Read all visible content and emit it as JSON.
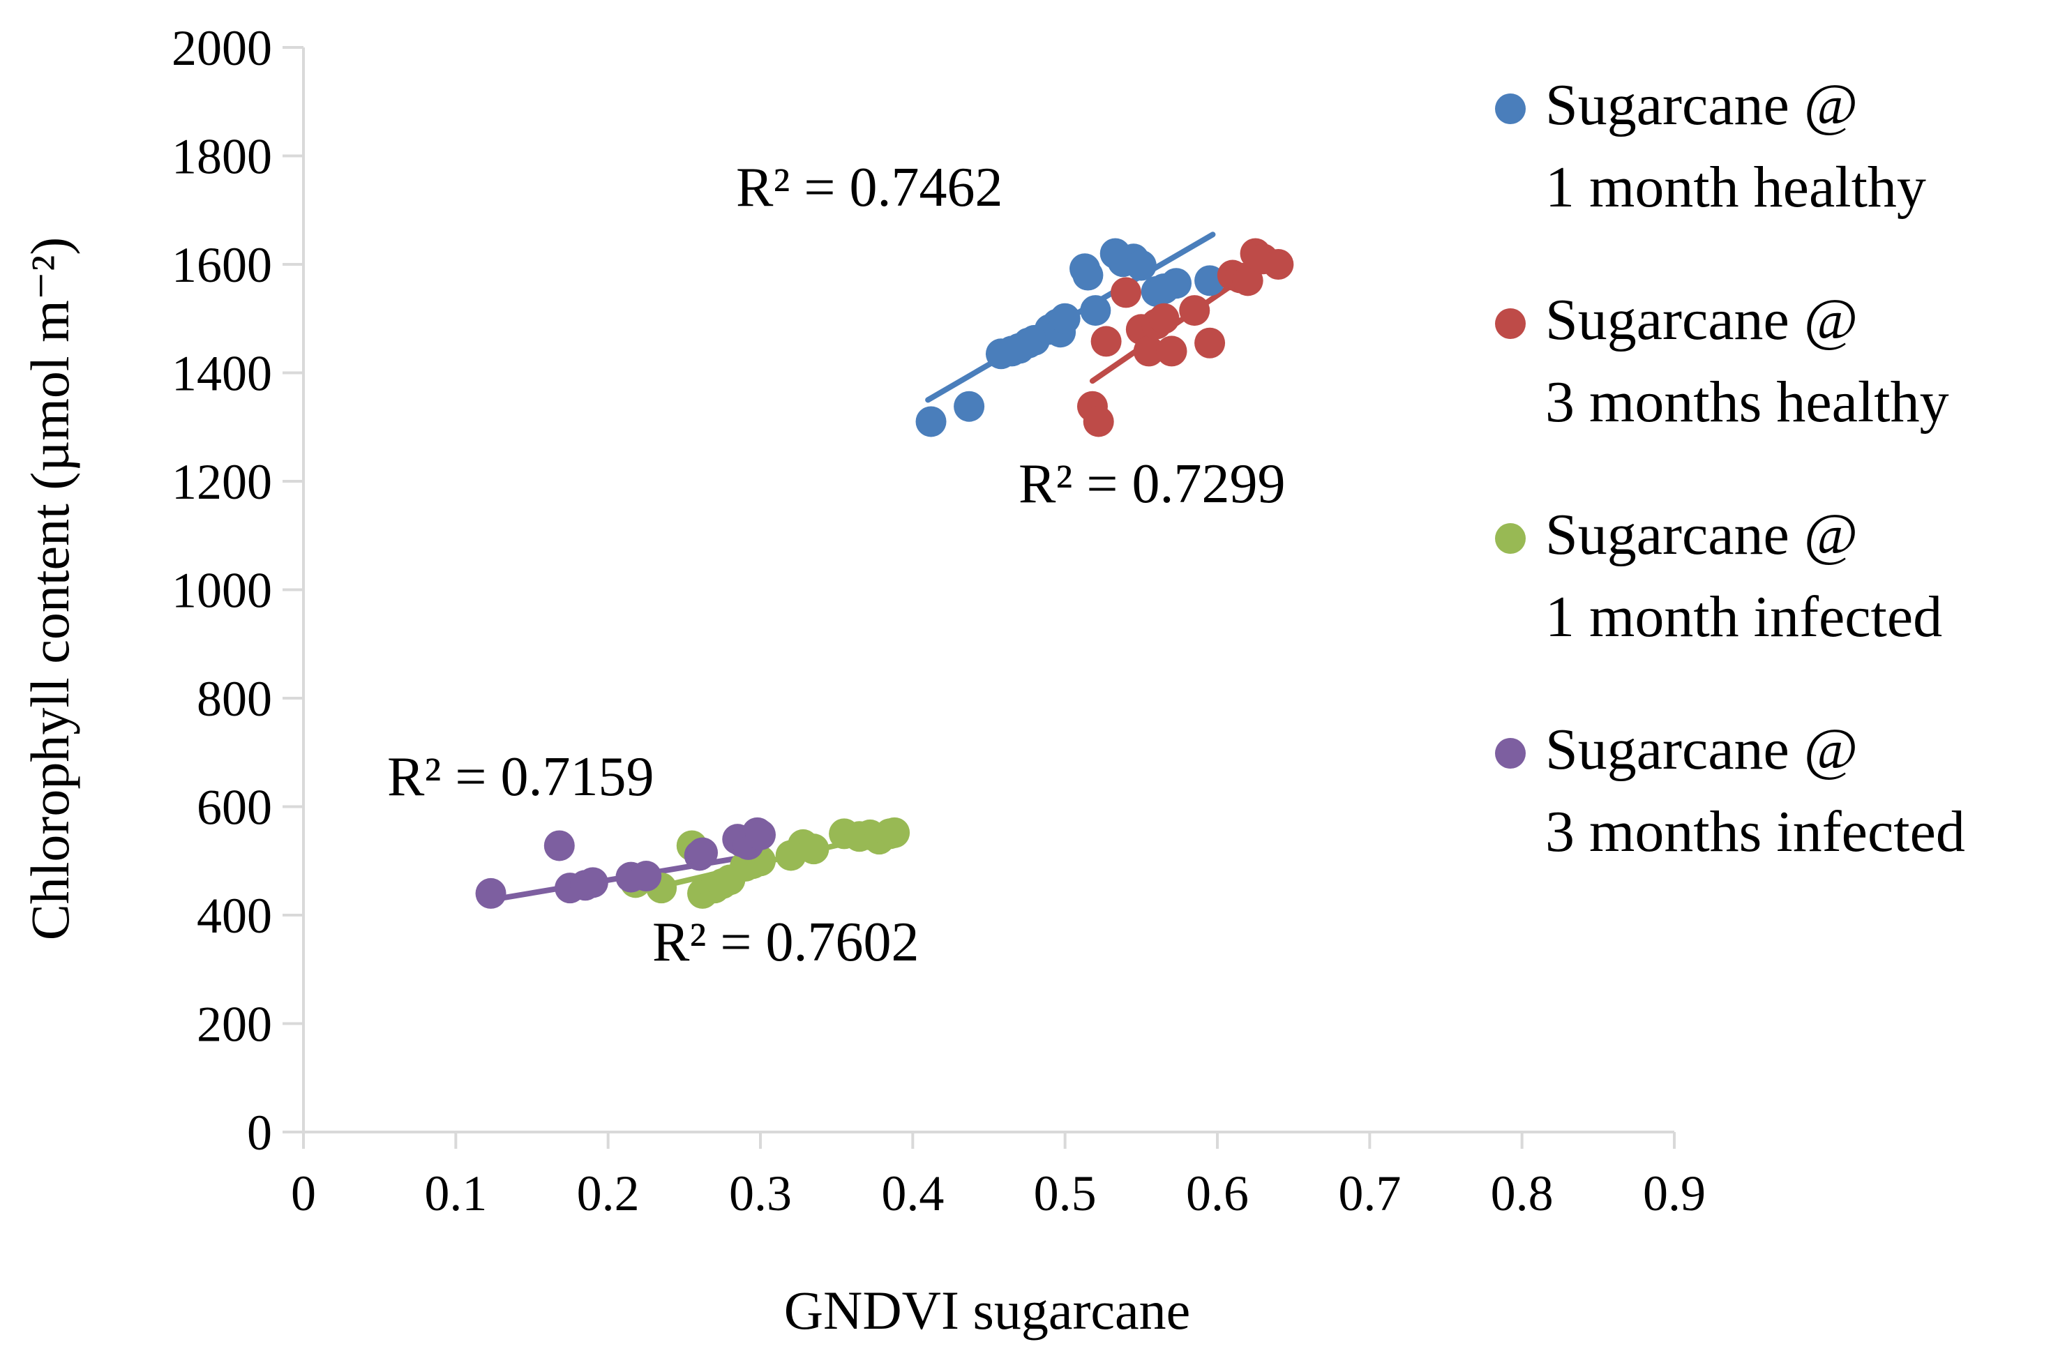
{
  "chart_data": {
    "type": "scatter",
    "title": "",
    "xlabel": "GNDVI sugarcane",
    "ylabel": "Chlorophyll content (µmol m⁻²)",
    "xlim": [
      0,
      0.9
    ],
    "ylim": [
      0,
      2000
    ],
    "xticks": [
      "0",
      "0.1",
      "0.2",
      "0.3",
      "0.4",
      "0.5",
      "0.6",
      "0.7",
      "0.8",
      "0.9"
    ],
    "yticks": [
      "0",
      "200",
      "400",
      "600",
      "800",
      "1000",
      "1200",
      "1400",
      "1600",
      "1800",
      "2000"
    ],
    "grid": false,
    "legend_position": "right",
    "series": [
      {
        "name": "Sugarcane @ 1 month healthy",
        "legend_lines": [
          "Sugarcane @",
          "1 month healthy"
        ],
        "color": "#4a7ebb",
        "r2_label": "R² = 0.7462",
        "trend": [
          [
            0.41,
            1350
          ],
          [
            0.597,
            1655
          ]
        ],
        "points": [
          [
            0.412,
            1310
          ],
          [
            0.437,
            1338
          ],
          [
            0.458,
            1435
          ],
          [
            0.465,
            1440
          ],
          [
            0.47,
            1445
          ],
          [
            0.476,
            1455
          ],
          [
            0.48,
            1460
          ],
          [
            0.49,
            1480
          ],
          [
            0.495,
            1490
          ],
          [
            0.497,
            1475
          ],
          [
            0.5,
            1500
          ],
          [
            0.513,
            1592
          ],
          [
            0.515,
            1580
          ],
          [
            0.52,
            1515
          ],
          [
            0.533,
            1620
          ],
          [
            0.538,
            1605
          ],
          [
            0.545,
            1610
          ],
          [
            0.55,
            1598
          ],
          [
            0.56,
            1550
          ],
          [
            0.565,
            1555
          ],
          [
            0.573,
            1565
          ],
          [
            0.595,
            1570
          ]
        ]
      },
      {
        "name": "Sugarcane @ 3 months healthy",
        "legend_lines": [
          "Sugarcane @",
          "3 months healthy"
        ],
        "color": "#be4b48",
        "r2_label": "R² = 0.7299",
        "trend": [
          [
            0.518,
            1385
          ],
          [
            0.64,
            1620
          ]
        ],
        "points": [
          [
            0.518,
            1338
          ],
          [
            0.522,
            1310
          ],
          [
            0.527,
            1458
          ],
          [
            0.54,
            1548
          ],
          [
            0.55,
            1480
          ],
          [
            0.555,
            1440
          ],
          [
            0.56,
            1490
          ],
          [
            0.565,
            1500
          ],
          [
            0.57,
            1440
          ],
          [
            0.585,
            1515
          ],
          [
            0.595,
            1455
          ],
          [
            0.61,
            1580
          ],
          [
            0.615,
            1575
          ],
          [
            0.62,
            1570
          ],
          [
            0.625,
            1620
          ],
          [
            0.63,
            1610
          ],
          [
            0.64,
            1600
          ]
        ]
      },
      {
        "name": "Sugarcane @ 1 month infected",
        "legend_lines": [
          "Sugarcane @",
          "1 month infected"
        ],
        "color": "#98b954",
        "r2_label": "R² = 0.7602",
        "trend": [
          [
            0.215,
            440
          ],
          [
            0.39,
            555
          ]
        ],
        "points": [
          [
            0.218,
            460
          ],
          [
            0.235,
            450
          ],
          [
            0.255,
            528
          ],
          [
            0.262,
            440
          ],
          [
            0.27,
            450
          ],
          [
            0.275,
            458
          ],
          [
            0.28,
            465
          ],
          [
            0.29,
            490
          ],
          [
            0.295,
            495
          ],
          [
            0.3,
            500
          ],
          [
            0.32,
            510
          ],
          [
            0.328,
            530
          ],
          [
            0.335,
            522
          ],
          [
            0.355,
            550
          ],
          [
            0.365,
            545
          ],
          [
            0.372,
            548
          ],
          [
            0.378,
            540
          ],
          [
            0.385,
            550
          ],
          [
            0.388,
            552
          ]
        ]
      },
      {
        "name": "Sugarcane @ 3 months infected",
        "legend_lines": [
          "Sugarcane @",
          "3 months infected"
        ],
        "color": "#7d5fa0",
        "r2_label": "R² = 0.7159",
        "trend": [
          [
            0.123,
            428
          ],
          [
            0.3,
            512
          ]
        ],
        "points": [
          [
            0.123,
            440
          ],
          [
            0.168,
            528
          ],
          [
            0.175,
            450
          ],
          [
            0.185,
            455
          ],
          [
            0.19,
            460
          ],
          [
            0.215,
            470
          ],
          [
            0.225,
            472
          ],
          [
            0.26,
            510
          ],
          [
            0.262,
            515
          ],
          [
            0.285,
            540
          ],
          [
            0.288,
            535
          ],
          [
            0.292,
            530
          ],
          [
            0.298,
            552
          ],
          [
            0.3,
            548
          ]
        ]
      }
    ]
  }
}
